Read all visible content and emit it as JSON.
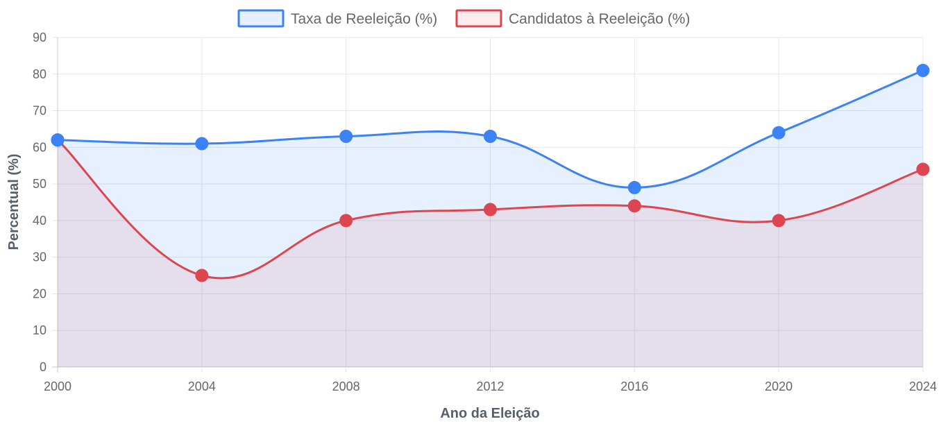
{
  "chart_data": {
    "type": "line",
    "categories": [
      "2000",
      "2004",
      "2008",
      "2012",
      "2016",
      "2020",
      "2024"
    ],
    "series": [
      {
        "name": "Taxa de Reeleição (%)",
        "values": [
          62,
          61,
          63,
          63,
          49,
          64,
          81
        ],
        "color": "#3b82f6",
        "fill": "rgba(59,130,246,0.12)"
      },
      {
        "name": "Candidatos à Reeleição (%)",
        "values": [
          62,
          25,
          40,
          43,
          44,
          40,
          54
        ],
        "color": "#dc4650",
        "fill": "rgba(220,70,80,0.10)"
      }
    ],
    "title": "",
    "xlabel": "Ano da Eleição",
    "ylabel": "Percentual (%)",
    "ylim": [
      0,
      90
    ],
    "yticks": [
      "0",
      "10",
      "20",
      "30",
      "40",
      "50",
      "60",
      "70",
      "80",
      "90"
    ],
    "grid": true,
    "legend": "top-center",
    "area_fill": true
  }
}
